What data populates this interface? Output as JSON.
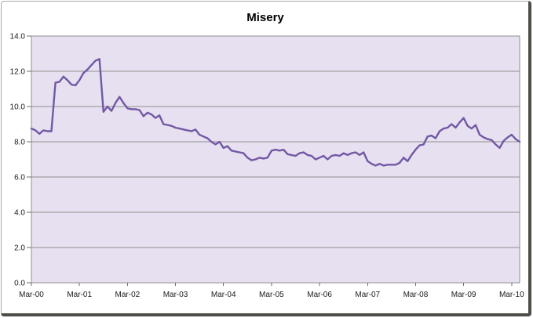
{
  "style": {
    "page_bg": "#ffffff",
    "plot_bg": "#e7e0f0",
    "grid_color": "#8f8f8f",
    "plot_border_color": "#8f8f8f",
    "tick_color": "#6e6e6e",
    "label_color": "#1a1a1a",
    "title_color": "#000000",
    "frame_light_border": "#a9a9a9",
    "frame_shadow_border": "#4e4d47"
  },
  "chart_data": {
    "type": "line",
    "title": "Misery",
    "xlabel": "",
    "ylabel": "",
    "x_tick_labels": [
      "Mar-00",
      "Mar-01",
      "Mar-02",
      "Mar-03",
      "Mar-04",
      "Mar-05",
      "Mar-06",
      "Mar-07",
      "Mar-08",
      "Mar-09",
      "Mar-10"
    ],
    "y_tick_labels": [
      "0.0",
      "2.0",
      "4.0",
      "6.0",
      "8.0",
      "10.0",
      "12.0",
      "14.0"
    ],
    "ylim": [
      0,
      14
    ],
    "y_step": 2,
    "x_points_per_tick": 12,
    "grid": "horizontal",
    "legend": "none",
    "series": [
      {
        "name": "Misery",
        "color": "#7258a5",
        "values": [
          8.75,
          8.65,
          8.45,
          8.65,
          8.6,
          8.6,
          11.35,
          11.4,
          11.7,
          11.5,
          11.25,
          11.2,
          11.5,
          11.9,
          12.1,
          12.35,
          12.6,
          12.7,
          9.7,
          10.0,
          9.75,
          10.2,
          10.55,
          10.2,
          9.9,
          9.85,
          9.85,
          9.8,
          9.45,
          9.65,
          9.55,
          9.35,
          9.5,
          9.0,
          8.95,
          8.9,
          8.8,
          8.75,
          8.7,
          8.65,
          8.6,
          8.7,
          8.4,
          8.3,
          8.2,
          8.0,
          7.85,
          8.0,
          7.65,
          7.75,
          7.5,
          7.45,
          7.4,
          7.35,
          7.1,
          6.95,
          7.0,
          7.1,
          7.05,
          7.1,
          7.5,
          7.55,
          7.5,
          7.55,
          7.3,
          7.25,
          7.2,
          7.35,
          7.4,
          7.25,
          7.2,
          7.0,
          7.1,
          7.2,
          7.0,
          7.2,
          7.25,
          7.2,
          7.35,
          7.25,
          7.35,
          7.4,
          7.25,
          7.4,
          6.9,
          6.75,
          6.65,
          6.75,
          6.65,
          6.7,
          6.7,
          6.7,
          6.8,
          7.1,
          6.9,
          7.25,
          7.55,
          7.8,
          7.85,
          8.3,
          8.35,
          8.2,
          8.6,
          8.75,
          8.8,
          9.0,
          8.8,
          9.1,
          9.35,
          8.9,
          8.75,
          8.95,
          8.4,
          8.25,
          8.15,
          8.1,
          7.85,
          7.65,
          8.05,
          8.25,
          8.4,
          8.15,
          8.0
        ]
      }
    ]
  }
}
